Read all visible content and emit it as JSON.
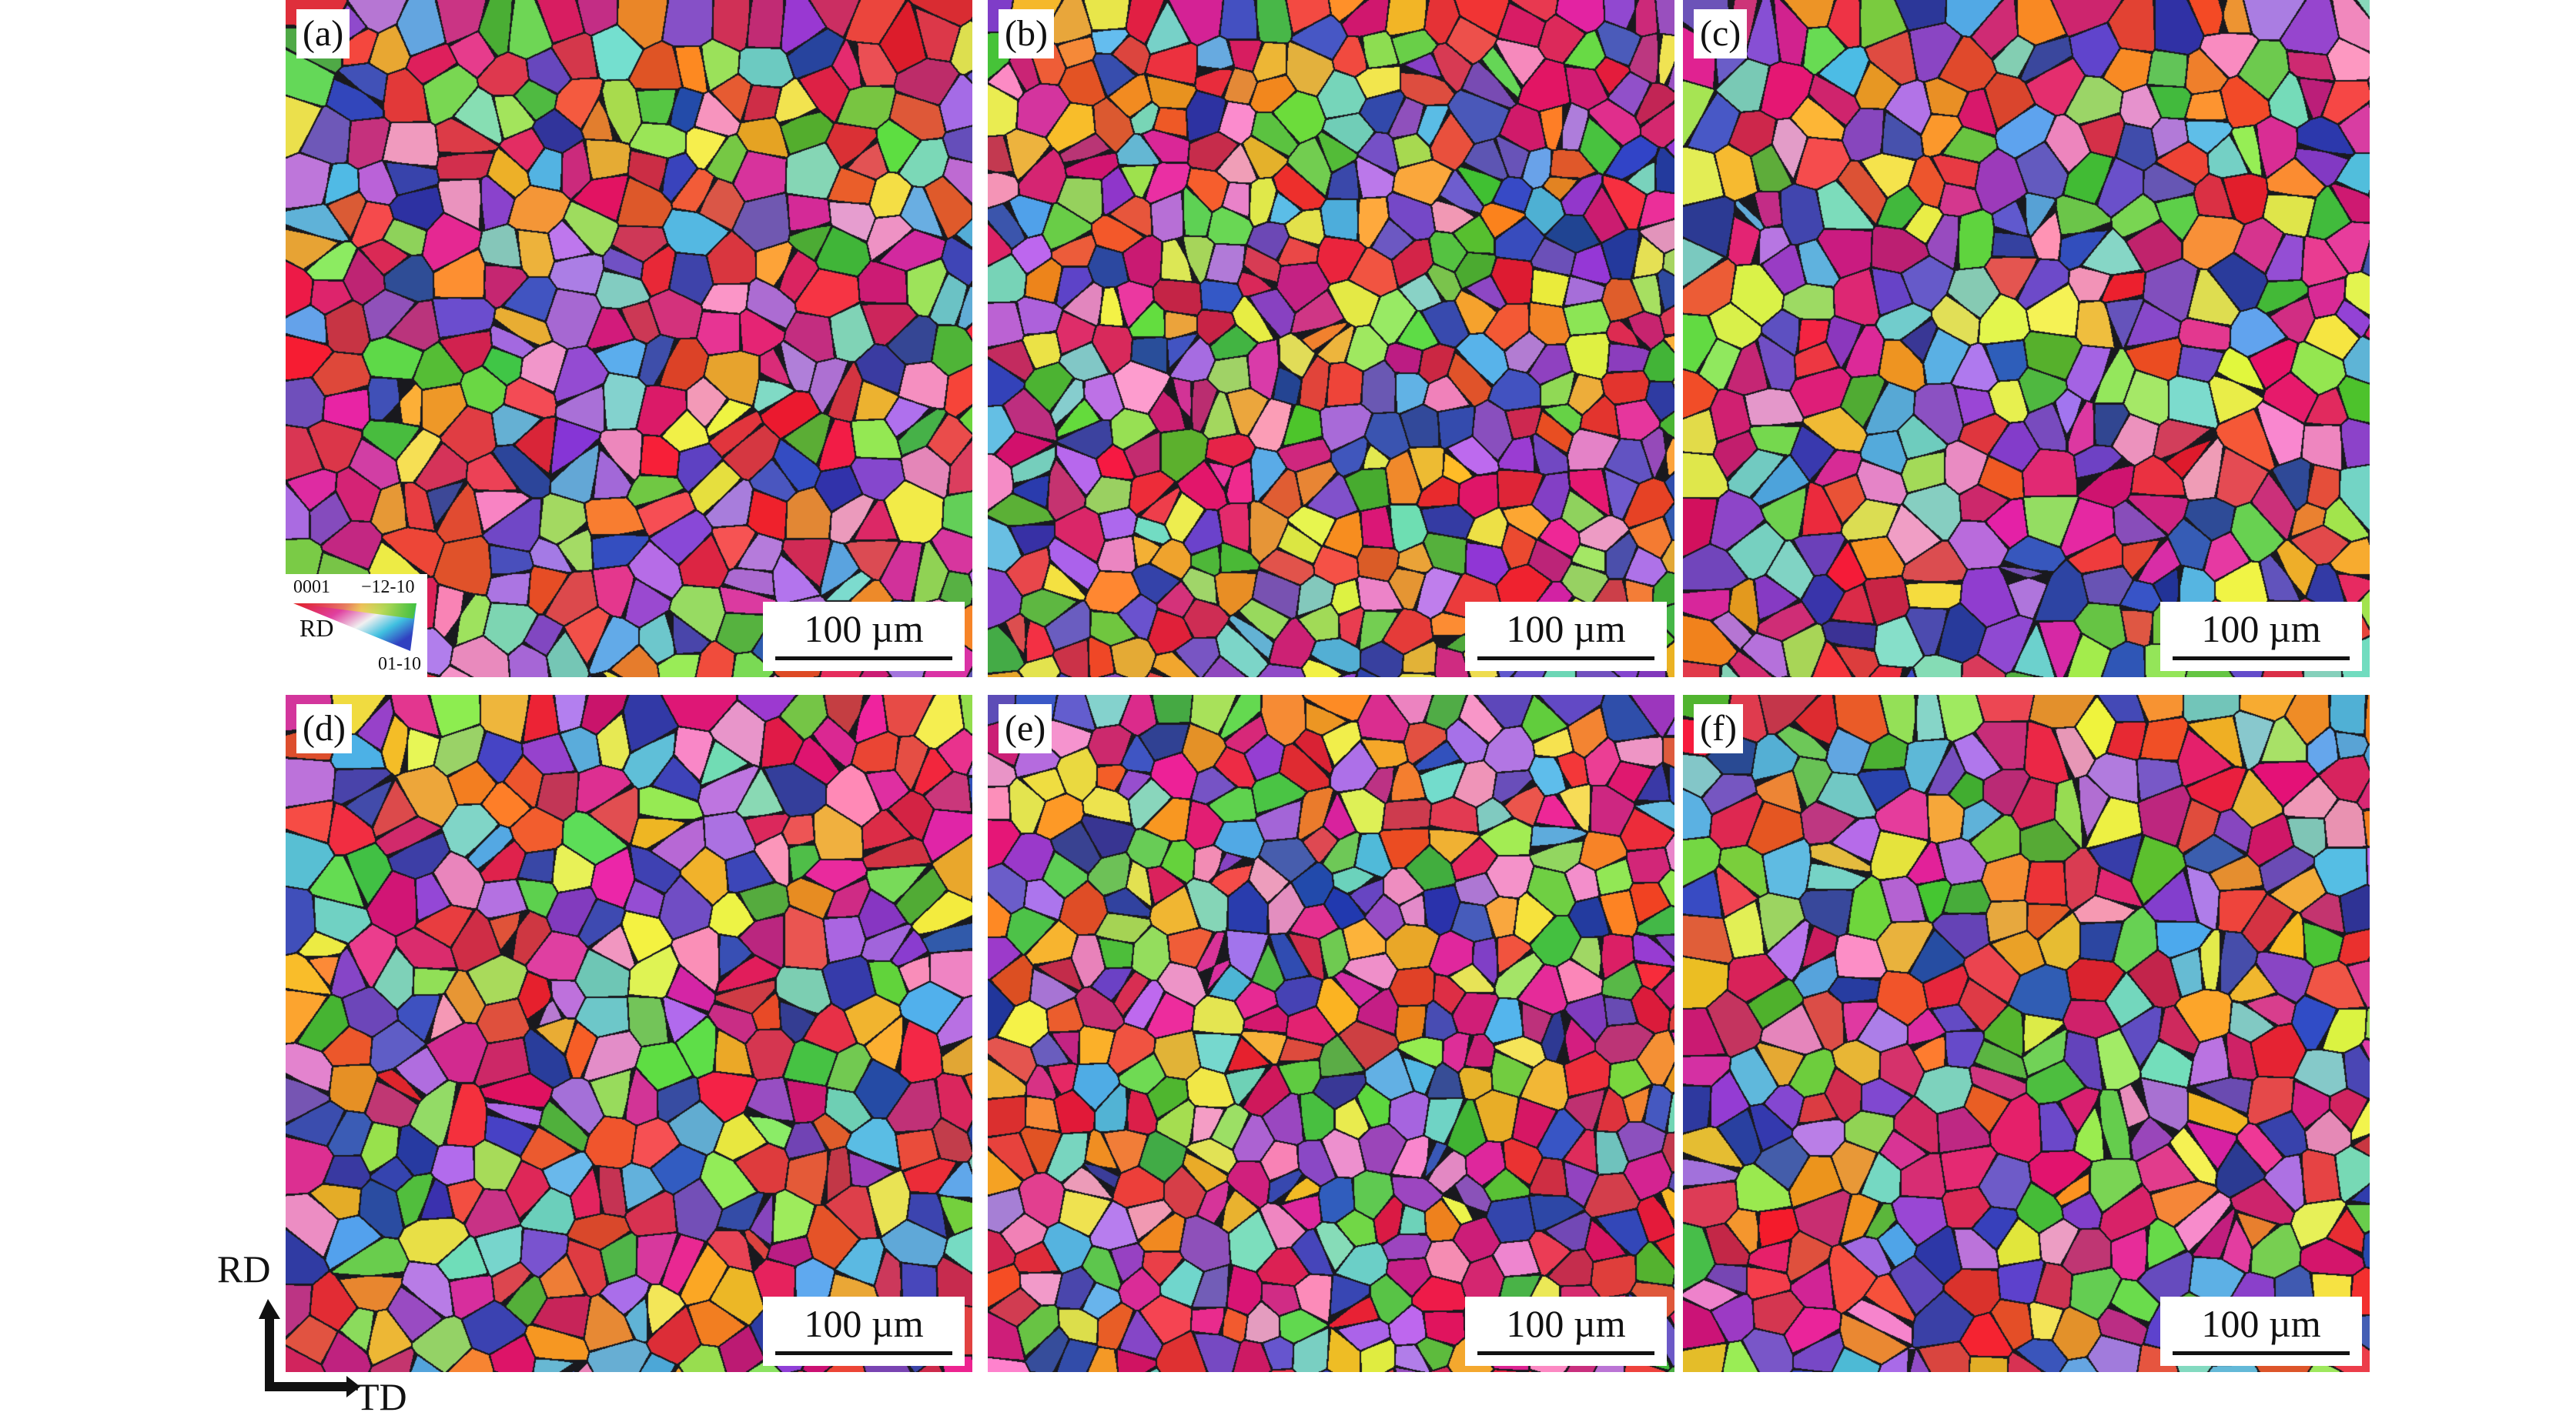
{
  "panels": [
    {
      "label": "(a)",
      "scale_bar": "100 µm"
    },
    {
      "label": "(b)",
      "scale_bar": "100 µm"
    },
    {
      "label": "(c)",
      "scale_bar": "100 µm"
    },
    {
      "label": "(d)",
      "scale_bar": "100 µm"
    },
    {
      "label": "(e)",
      "scale_bar": "100 µm"
    },
    {
      "label": "(f)",
      "scale_bar": "100 µm"
    }
  ],
  "legend": {
    "top_left": "0001",
    "top_right": "−12-10",
    "bottom": "01-10",
    "direction": "RD"
  },
  "axes": {
    "vertical": "RD",
    "horizontal": "TD"
  },
  "grain_colors": [
    "#e8283a",
    "#d81f6a",
    "#e0309a",
    "#3d4fb8",
    "#2f3fa0",
    "#6a4fc0",
    "#8e44c8",
    "#4fb83a",
    "#6ccf4a",
    "#9adf5a",
    "#f08a2a",
    "#f0b030",
    "#e8e84a",
    "#e85030",
    "#5ab0e0",
    "#7ad0c0",
    "#f090c0",
    "#b070e0",
    "#d03050",
    "#c82878",
    "#e84848"
  ]
}
